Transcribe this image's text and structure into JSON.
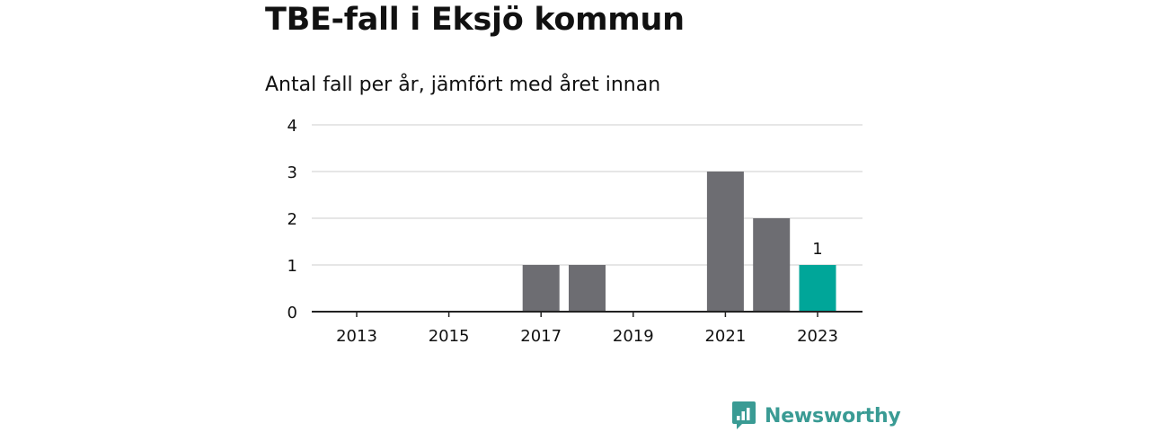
{
  "title": "TBE-fall i Eksjö kommun",
  "subtitle": "Antal fall per år, jämfört med året innan",
  "brand": {
    "name": "Newsworthy",
    "color": "#3a9b94"
  },
  "colors": {
    "bar": "#6d6d72",
    "highlight": "#00a699",
    "grid": "#dddddd",
    "axis": "#222222"
  },
  "chart_data": {
    "type": "bar",
    "categories": [
      "2013",
      "2014",
      "2015",
      "2016",
      "2017",
      "2018",
      "2019",
      "2020",
      "2021",
      "2022",
      "2023"
    ],
    "values": [
      0,
      0,
      0,
      0,
      1,
      1,
      0,
      0,
      3,
      2,
      1
    ],
    "x_tick_labels": [
      "2013",
      "2015",
      "2017",
      "2019",
      "2021",
      "2023"
    ],
    "y_ticks": [
      0,
      1,
      2,
      3,
      4
    ],
    "ylim": [
      0,
      4
    ],
    "highlight_category": "2023",
    "data_labels": [
      {
        "category": "2023",
        "text": "1"
      }
    ],
    "grid": true,
    "legend": "none"
  }
}
